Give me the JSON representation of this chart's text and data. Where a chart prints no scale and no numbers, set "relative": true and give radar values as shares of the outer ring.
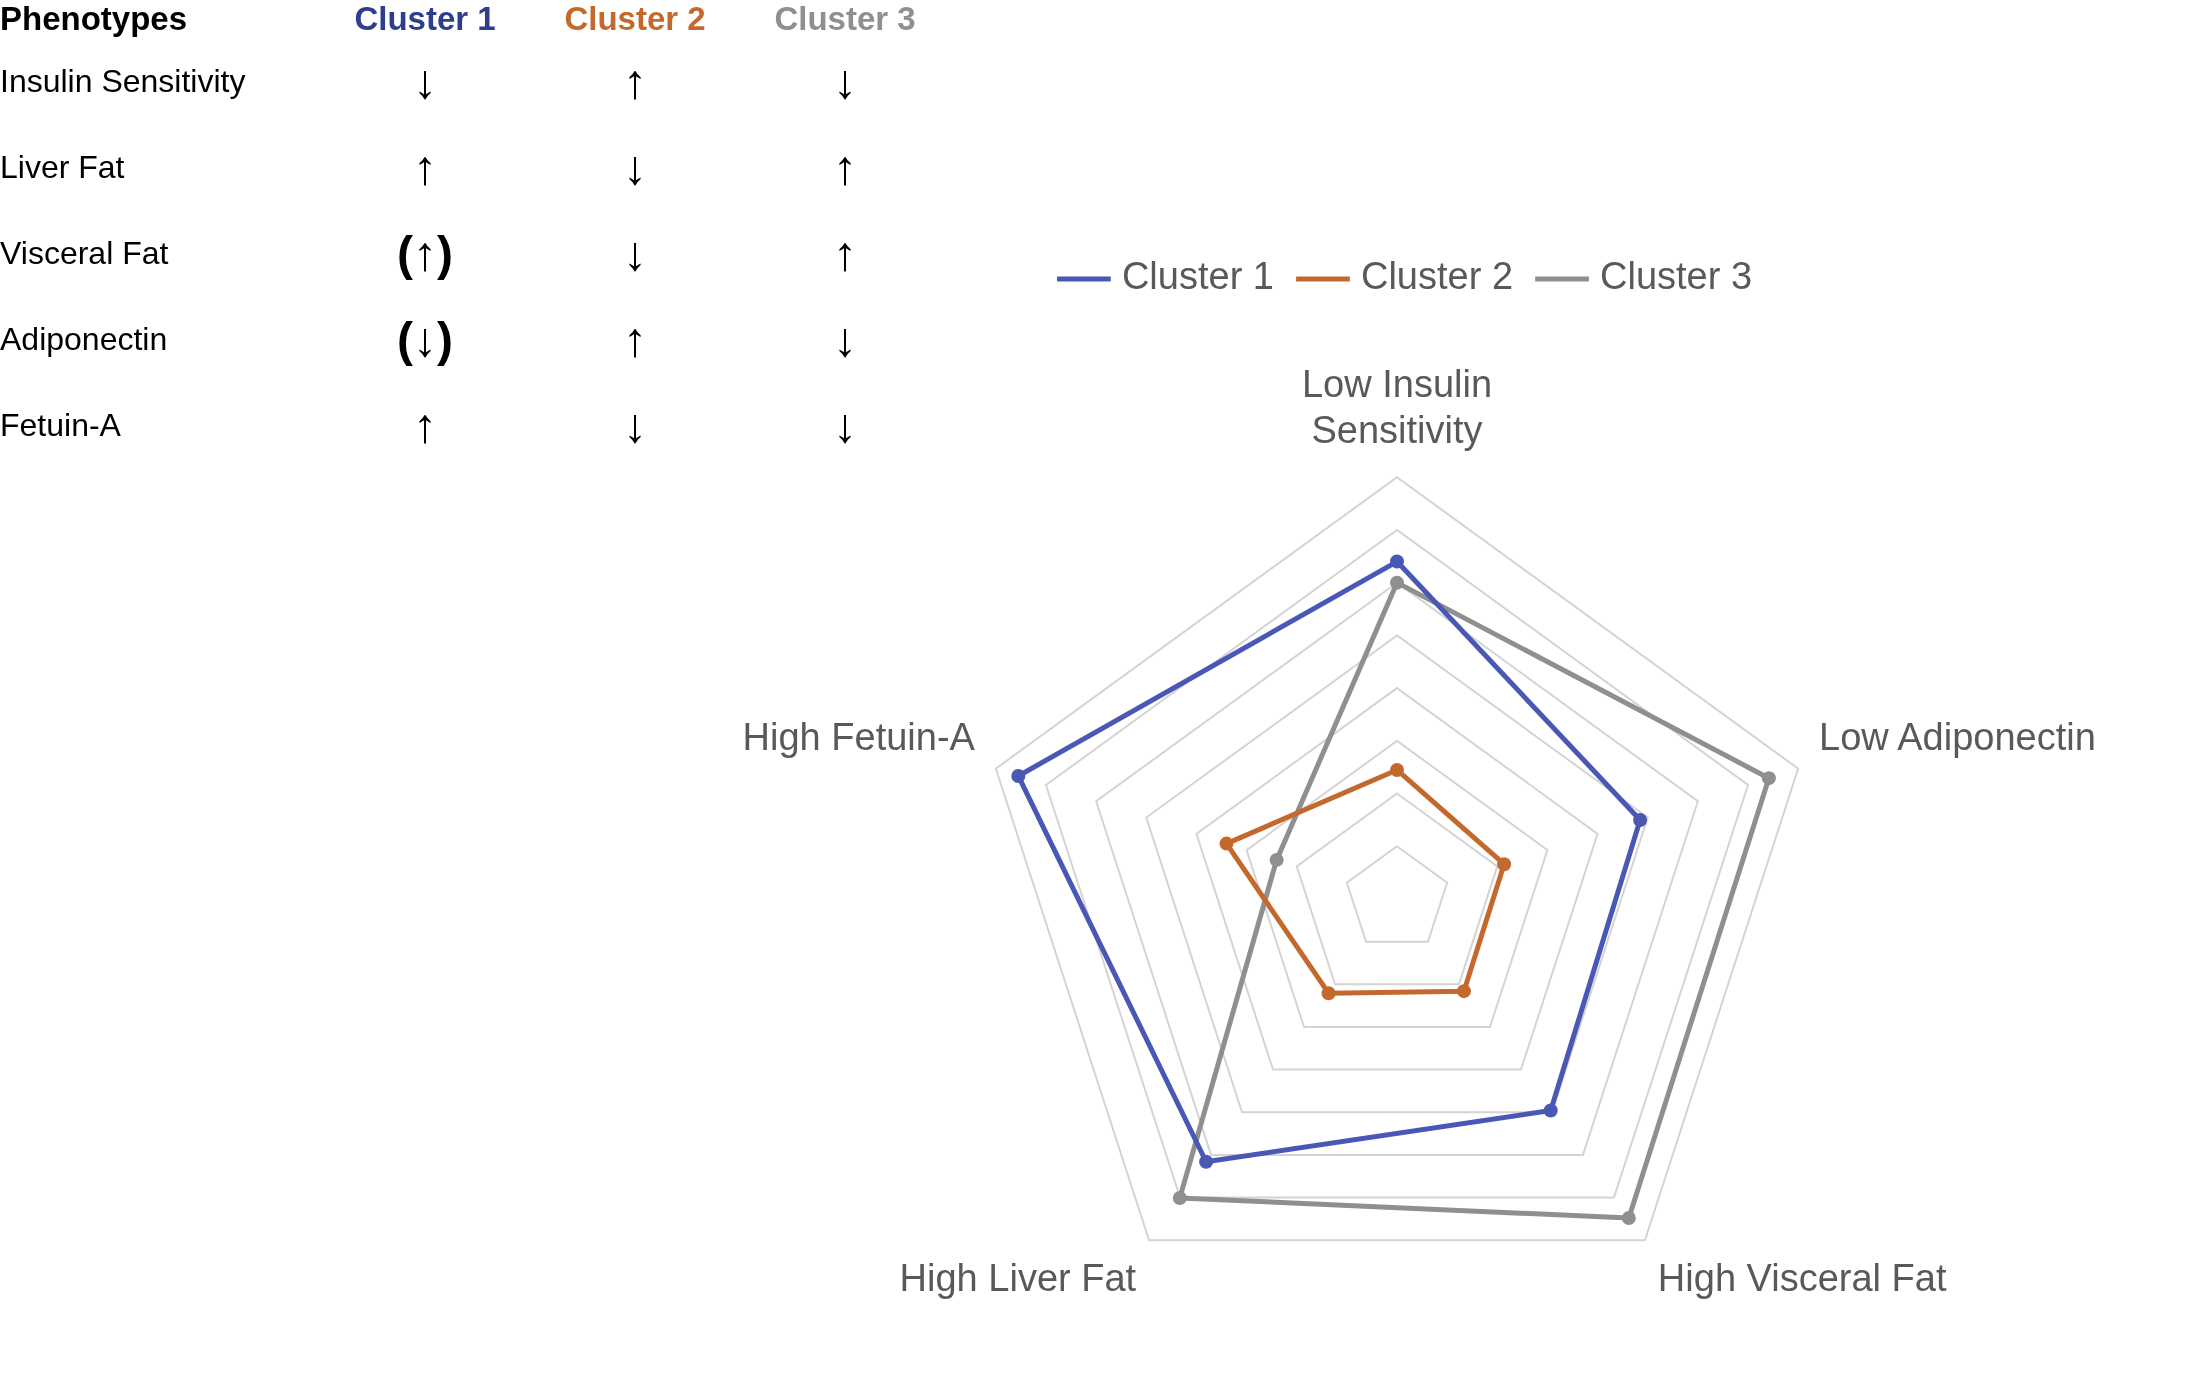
{
  "chart_data": [
    {
      "type": "other",
      "title": "Phenotypes",
      "categories": [
        "Cluster 1",
        "Cluster 2",
        "Cluster 3"
      ],
      "colors": [
        "#2f3e8c",
        "#c4692e",
        "#8f8f8f"
      ],
      "y_categories": [
        "Insulin Sensitivity",
        "Liver Fat",
        "Visceral Fat",
        "Adiponectin",
        "Fetuin-A"
      ],
      "cell_labels": [
        [
          "↓",
          "↑",
          "↓"
        ],
        [
          "↑",
          "↓",
          "↑"
        ],
        [
          "(↑)",
          "↓",
          "↑"
        ],
        [
          "(↓)",
          "↑",
          "↓"
        ],
        [
          "↑",
          "↓",
          "↓"
        ]
      ]
    },
    {
      "type": "radar",
      "relative": true,
      "legend": "top",
      "marker": "circle",
      "grid": true,
      "categories": [
        "Low Insulin Sensitivity",
        "Low Adiponectin",
        "High Visceral Fat",
        "High Liver Fat",
        "High Fetuin-A"
      ],
      "series": [
        {
          "name": "Cluster 1",
          "color": "#4a58b5",
          "values": [
            0.8,
            0.606,
            0.62,
            0.77,
            0.944
          ]
        },
        {
          "name": "Cluster 2",
          "color": "#c4692e",
          "values": [
            0.306,
            0.267,
            0.27,
            0.276,
            0.425
          ]
        },
        {
          "name": "Cluster 3",
          "color": "#8f8f8f",
          "values": [
            0.75,
            0.927,
            0.935,
            0.876,
            0.3
          ]
        }
      ]
    }
  ]
}
